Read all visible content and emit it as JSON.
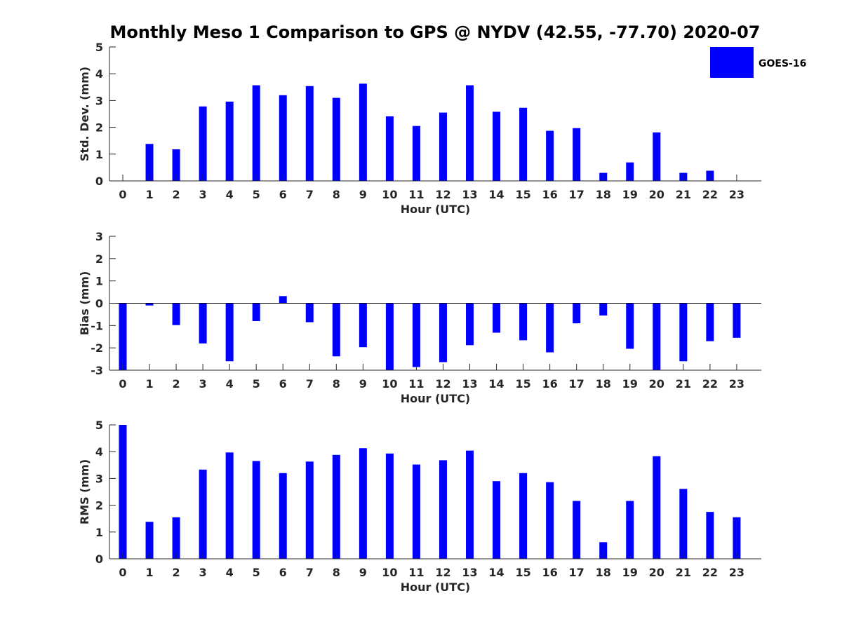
{
  "title": "Monthly Meso 1 Comparison to GPS @ NYDV (42.55, -77.70) 2020-07",
  "colors": {
    "bar": "#0000ff",
    "axis": "#262626"
  },
  "chart_data": [
    {
      "type": "bar",
      "categories": [
        "0",
        "1",
        "2",
        "3",
        "4",
        "5",
        "6",
        "7",
        "8",
        "9",
        "10",
        "11",
        "12",
        "13",
        "14",
        "15",
        "16",
        "17",
        "18",
        "19",
        "20",
        "21",
        "22",
        "23"
      ],
      "series": [
        {
          "name": "GOES-16",
          "values": [
            0,
            1.38,
            1.18,
            2.78,
            2.96,
            3.57,
            3.2,
            3.54,
            3.1,
            3.63,
            2.41,
            2.05,
            2.55,
            3.57,
            2.58,
            2.73,
            1.87,
            1.97,
            0.3,
            0.69,
            1.81,
            0.3,
            0.38,
            0
          ]
        }
      ],
      "xlabel": "Hour (UTC)",
      "ylabel": "Std. Dev. (mm)",
      "ylim": [
        0,
        5
      ],
      "yticks": [
        "0",
        "1",
        "2",
        "3",
        "4",
        "5"
      ],
      "legend": {
        "label": "GOES-16",
        "position": "top-right"
      }
    },
    {
      "type": "bar",
      "categories": [
        "0",
        "1",
        "2",
        "3",
        "4",
        "5",
        "6",
        "7",
        "8",
        "9",
        "10",
        "11",
        "12",
        "13",
        "14",
        "15",
        "16",
        "17",
        "18",
        "19",
        "20",
        "21",
        "22",
        "23"
      ],
      "series": [
        {
          "name": "GOES-16",
          "values": [
            -3.0,
            -0.1,
            -0.98,
            -1.8,
            -2.6,
            -0.8,
            0.32,
            -0.85,
            -2.38,
            -1.97,
            -3.0,
            -2.86,
            -2.64,
            -1.88,
            -1.32,
            -1.66,
            -2.2,
            -0.9,
            -0.55,
            -2.04,
            -3.0,
            -2.6,
            -1.7,
            -1.55
          ]
        }
      ],
      "xlabel": "Hour (UTC)",
      "ylabel": "Bias (mm)",
      "ylim": [
        -3,
        3
      ],
      "yticks": [
        "-3",
        "-2",
        "-1",
        "0",
        "1",
        "2",
        "3"
      ],
      "zero_line": true
    },
    {
      "type": "bar",
      "categories": [
        "0",
        "1",
        "2",
        "3",
        "4",
        "5",
        "6",
        "7",
        "8",
        "9",
        "10",
        "11",
        "12",
        "13",
        "14",
        "15",
        "16",
        "17",
        "18",
        "19",
        "20",
        "21",
        "22",
        "23"
      ],
      "series": [
        {
          "name": "GOES-16",
          "values": [
            5.0,
            1.38,
            1.55,
            3.33,
            3.97,
            3.65,
            3.2,
            3.63,
            3.88,
            4.13,
            3.93,
            3.52,
            3.68,
            4.04,
            2.9,
            3.2,
            2.86,
            2.16,
            0.62,
            2.16,
            3.83,
            2.61,
            1.75,
            1.55
          ]
        }
      ],
      "xlabel": "Hour (UTC)",
      "ylabel": "RMS (mm)",
      "ylim": [
        0,
        5
      ],
      "yticks": [
        "0",
        "1",
        "2",
        "3",
        "4",
        "5"
      ]
    }
  ]
}
